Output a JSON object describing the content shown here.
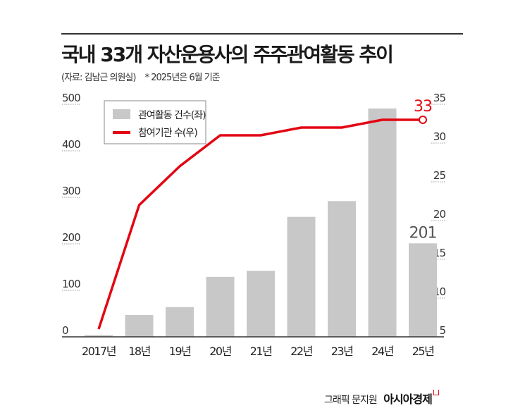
{
  "title": "국내 33개 자산운용사의 주주관여활동 추이",
  "source": "(자료: 김남근 의원실)",
  "note": "* 2025년은 6월 기준",
  "credit": "그래픽 문지원",
  "brand": "아시아경제",
  "chart_data": {
    "type": "bar+line",
    "categories": [
      "2017년",
      "18년",
      "19년",
      "20년",
      "21년",
      "22년",
      "23년",
      "24년",
      "25년"
    ],
    "series": [
      {
        "name": "관여활동 건수(좌)",
        "type": "bar",
        "axis": "left",
        "color": "#c8c8c8",
        "values": [
          4,
          47,
          64,
          129,
          142,
          258,
          292,
          491,
          201
        ]
      },
      {
        "name": "참여기관 수(우)",
        "type": "line",
        "axis": "right",
        "color": "#e30613",
        "values": [
          6,
          22,
          27,
          31,
          31,
          32,
          32,
          33,
          33
        ]
      }
    ],
    "annotations": [
      {
        "series": 0,
        "index": 8,
        "text": "201"
      },
      {
        "series": 1,
        "index": 8,
        "text": "33"
      }
    ],
    "left_axis": {
      "ylim": [
        0,
        500
      ],
      "ticks": [
        "0",
        "100",
        "200",
        "300",
        "400",
        "500"
      ]
    },
    "right_axis": {
      "ylim": [
        5,
        35
      ],
      "ticks": [
        "5",
        "10",
        "15",
        "20",
        "25",
        "30",
        "35"
      ]
    },
    "legend": "top-left",
    "grid": false
  }
}
